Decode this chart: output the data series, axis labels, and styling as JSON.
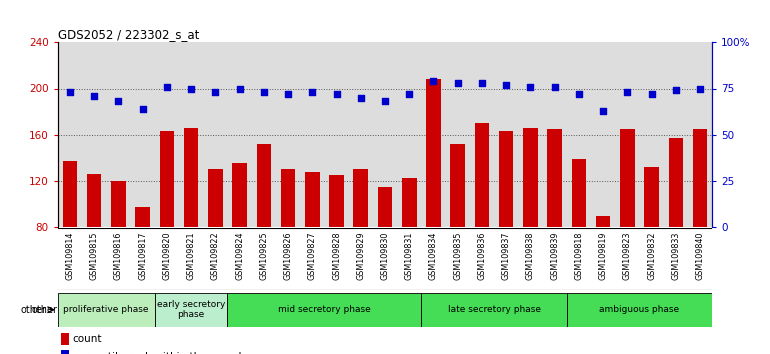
{
  "title": "GDS2052 / 223302_s_at",
  "samples": [
    "GSM109814",
    "GSM109815",
    "GSM109816",
    "GSM109817",
    "GSM109820",
    "GSM109821",
    "GSM109822",
    "GSM109824",
    "GSM109825",
    "GSM109826",
    "GSM109827",
    "GSM109828",
    "GSM109829",
    "GSM109830",
    "GSM109831",
    "GSM109834",
    "GSM109835",
    "GSM109836",
    "GSM109837",
    "GSM109838",
    "GSM109839",
    "GSM109818",
    "GSM109819",
    "GSM109823",
    "GSM109832",
    "GSM109833",
    "GSM109840"
  ],
  "counts": [
    137,
    126,
    120,
    97,
    163,
    166,
    130,
    135,
    152,
    130,
    127,
    125,
    130,
    114,
    122,
    208,
    152,
    170,
    163,
    166,
    165,
    139,
    89,
    165,
    132,
    157,
    165
  ],
  "percentiles": [
    73,
    71,
    68,
    64,
    76,
    75,
    73,
    75,
    73,
    72,
    73,
    72,
    70,
    68,
    72,
    79,
    78,
    78,
    77,
    76,
    76,
    72,
    63,
    73,
    72,
    74,
    75
  ],
  "phases": [
    {
      "name": "proliferative phase",
      "start": 0,
      "end": 4,
      "color": "#bbeebb"
    },
    {
      "name": "early secretory\nphase",
      "start": 4,
      "end": 7,
      "color": "#bbeecc"
    },
    {
      "name": "mid secretory phase",
      "start": 7,
      "end": 15,
      "color": "#44dd55"
    },
    {
      "name": "late secretory phase",
      "start": 15,
      "end": 21,
      "color": "#44dd55"
    },
    {
      "name": "ambiguous phase",
      "start": 21,
      "end": 27,
      "color": "#44dd55"
    }
  ],
  "ylim_left": [
    80,
    240
  ],
  "ylim_right": [
    0,
    100
  ],
  "yticks_left": [
    80,
    120,
    160,
    200,
    240
  ],
  "yticks_right": [
    0,
    25,
    50,
    75,
    100
  ],
  "ytick_labels_right": [
    "0",
    "25",
    "50",
    "75",
    "100%"
  ],
  "bar_color": "#cc0000",
  "dot_color": "#0000cc",
  "grid_color": "#555555",
  "bg_color": "#dddddd",
  "legend_count_color": "#cc0000",
  "legend_pct_color": "#0000cc"
}
